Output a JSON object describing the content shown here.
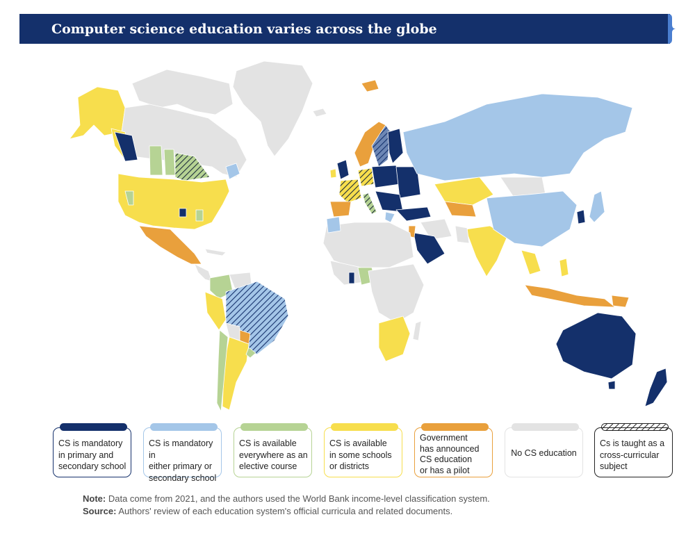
{
  "title": "Computer science education varies across the globe",
  "colors": {
    "title_bar": "#14306b",
    "mandatory_both": "#14306b",
    "mandatory_either": "#a4c6e8",
    "elective_everywhere": "#b6d394",
    "some_schools": "#f7de4d",
    "announced_pilot": "#e9a03c",
    "no_cs": "#e3e3e3",
    "cross_curricular_hatch": "#222222"
  },
  "legend": [
    {
      "key": "mandatory_both",
      "label": "CS is mandatory\nin primary and\nsecondary school",
      "color": "#14306b",
      "border": "#14306b"
    },
    {
      "key": "mandatory_either",
      "label": "CS is mandatory in\neither primary or\nsecondary school",
      "color": "#a4c6e8",
      "border": "#a4c6e8"
    },
    {
      "key": "elective_everywhere",
      "label": "CS is available\neverywhere as an\nelective course",
      "color": "#b6d394",
      "border": "#b6d394"
    },
    {
      "key": "some_schools",
      "label": "CS is available\nin some schools\nor districts",
      "color": "#f7de4d",
      "border": "#f7de4d"
    },
    {
      "key": "announced_pilot",
      "label": "Government\nhas announced\nCS education\nor has a pilot",
      "color": "#e9a03c",
      "border": "#e9a03c"
    },
    {
      "key": "no_cs",
      "label": "No CS education",
      "color": "#e3e3e3",
      "border": "#e3e3e3"
    },
    {
      "key": "cross_curricular",
      "label": "Cs is taught as a\ncross-curricular\nsubject",
      "color": "hatch",
      "border": "#222222"
    }
  ],
  "notes": {
    "note_label": "Note:",
    "note_text": "Data come from 2021, and the authors used the World Bank income-level classification system.",
    "source_label": "Source:",
    "source_text": "Authors' review of each education system's official curricula and related documents."
  }
}
